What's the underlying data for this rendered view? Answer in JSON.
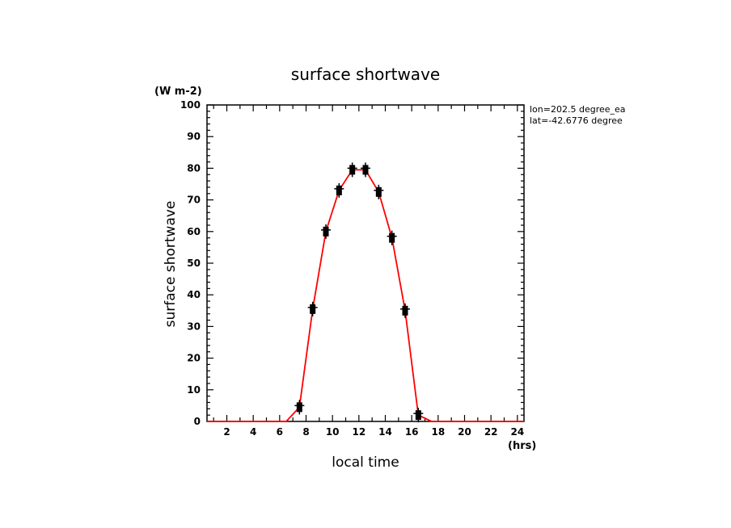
{
  "chart_data": {
    "type": "line",
    "title": "surface shortwave",
    "ylabel": "surface shortwave",
    "xlabel": "local time",
    "y_units": "(W m-2)",
    "x_units": "(hrs)",
    "annotation": [
      "lon=202.5 degree_ea",
      "lat=-42.6776 degree"
    ],
    "xlim": [
      0.5,
      24.5
    ],
    "ylim": [
      0,
      100
    ],
    "x_ticks": [
      2,
      4,
      6,
      8,
      10,
      12,
      14,
      16,
      18,
      20,
      22,
      24
    ],
    "y_ticks": [
      0,
      10,
      20,
      30,
      40,
      50,
      60,
      70,
      80,
      90,
      100
    ],
    "series": [
      {
        "color": "#ff0000",
        "x": [
          0.5,
          1.5,
          2.5,
          3.5,
          4.5,
          5.5,
          6.5,
          7.5,
          8.5,
          9.5,
          10.5,
          11.5,
          12.5,
          13.5,
          14.5,
          15.5,
          16.5,
          17.5,
          18.5,
          19.5,
          20.5,
          21.5,
          22.5,
          23.5,
          24.5
        ],
        "y": [
          0,
          0,
          0,
          0,
          0,
          0,
          0,
          4.5,
          35.5,
          60,
          73,
          79.5,
          79.5,
          72.5,
          58,
          35,
          2,
          0,
          0,
          0,
          0,
          0,
          0,
          0,
          0
        ]
      }
    ],
    "markers": {
      "x": [
        7.5,
        8.5,
        9.5,
        10.5,
        11.5,
        12.5,
        13.5,
        14.5,
        15.5,
        16.5
      ],
      "y": [
        4.5,
        35.5,
        60,
        73,
        79.5,
        79.5,
        72.5,
        58,
        35,
        2
      ]
    },
    "grid": false,
    "legend": "none"
  }
}
